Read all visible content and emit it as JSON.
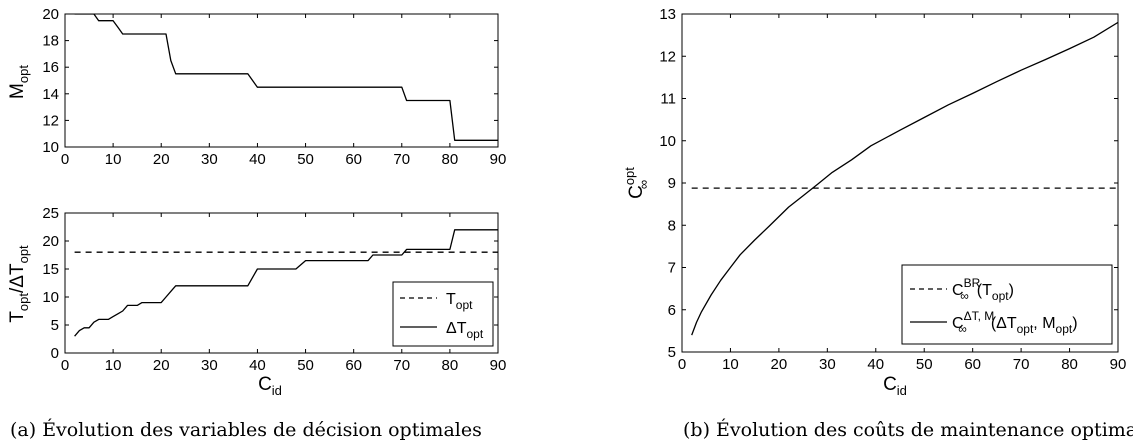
{
  "chart_data": [
    {
      "type": "line",
      "panel": "a-top",
      "xlabel": "",
      "ylabel": "M",
      "ylabel_sub": "opt",
      "xlim": [
        0,
        90
      ],
      "ylim": [
        10,
        20
      ],
      "x_ticks": [
        0,
        10,
        20,
        30,
        40,
        50,
        60,
        70,
        80,
        90
      ],
      "y_ticks": [
        10,
        12,
        14,
        16,
        18,
        20
      ],
      "grid": false,
      "series": [
        {
          "style": "solid",
          "x": [
            2,
            6,
            7,
            10,
            11,
            12,
            21,
            21.5,
            22,
            23,
            38,
            40,
            70,
            71,
            80,
            81,
            90
          ],
          "y": [
            20,
            20,
            19.5,
            19.5,
            19,
            18.5,
            18.5,
            17.5,
            16.5,
            15.5,
            15.5,
            14.5,
            14.5,
            13.5,
            13.5,
            10.5,
            10.5
          ]
        }
      ]
    },
    {
      "type": "line",
      "panel": "a-bottom",
      "xlabel": "C",
      "xlabel_sub": "id",
      "ylabel": "T",
      "ylabel_sub": "opt",
      "ylabel_mid": "/ΔT",
      "ylabel_sub2": "opt",
      "xlim": [
        0,
        90
      ],
      "ylim": [
        0,
        25
      ],
      "x_ticks": [
        0,
        10,
        20,
        30,
        40,
        50,
        60,
        70,
        80,
        90
      ],
      "y_ticks": [
        0,
        5,
        10,
        15,
        20,
        25
      ],
      "grid": false,
      "legend_position": "bottom-right",
      "series": [
        {
          "name": "T",
          "name_sub": "opt",
          "style": "dashed",
          "x": [
            2,
            90
          ],
          "y": [
            18,
            18
          ]
        },
        {
          "name": "ΔT",
          "name_sub": "opt",
          "style": "solid",
          "x": [
            2,
            3,
            4,
            5,
            6,
            7,
            9,
            10,
            11,
            12,
            13,
            15,
            16,
            20,
            21,
            22,
            23,
            38,
            40,
            48,
            50,
            63,
            64,
            70,
            71,
            80,
            81,
            90
          ],
          "y": [
            3,
            4,
            4.5,
            4.5,
            5.5,
            6,
            6,
            6.5,
            7,
            7.5,
            8.5,
            8.5,
            9,
            9,
            10,
            11,
            12,
            12,
            15,
            15,
            16.5,
            16.5,
            17.5,
            17.5,
            18.5,
            18.5,
            22,
            22
          ]
        }
      ]
    },
    {
      "type": "line",
      "panel": "b",
      "xlabel": "C",
      "xlabel_sub": "id",
      "ylabel": "C",
      "ylabel_sup": "opt",
      "ylabel_sub": "∞",
      "xlim": [
        0,
        90
      ],
      "ylim": [
        5,
        13
      ],
      "x_ticks": [
        0,
        10,
        20,
        30,
        40,
        50,
        60,
        70,
        80,
        90
      ],
      "y_ticks": [
        5,
        6,
        7,
        8,
        9,
        10,
        11,
        12,
        13
      ],
      "grid": false,
      "legend_position": "bottom-right",
      "series": [
        {
          "name": "C",
          "name_sub": "∞",
          "name_sup": "BR",
          "name_tail": "(T",
          "name_tail_sub": "opt",
          "name_end": ")",
          "style": "dashed",
          "x": [
            2,
            90
          ],
          "y": [
            8.88,
            8.88
          ]
        },
        {
          "name": "C",
          "name_sub": "∞",
          "name_sup": "ΔT, M",
          "name_tail": "(ΔT",
          "name_tail_sub": "opt",
          "name_mid": ", M",
          "name_mid_sub": "opt",
          "name_end": ")",
          "style": "solid",
          "x": [
            2,
            3,
            4,
            6,
            8,
            10,
            12,
            15,
            18,
            22,
            25,
            28,
            31,
            35,
            39,
            45,
            50,
            55,
            60,
            65,
            70,
            75,
            80,
            85,
            90
          ],
          "y": [
            5.4,
            5.7,
            5.95,
            6.35,
            6.7,
            7.0,
            7.3,
            7.65,
            7.98,
            8.43,
            8.7,
            8.97,
            9.25,
            9.55,
            9.88,
            10.25,
            10.55,
            10.85,
            11.12,
            11.4,
            11.67,
            11.92,
            12.18,
            12.45,
            12.8
          ]
        }
      ]
    }
  ],
  "captions": {
    "a": "(a) Évolution des variables de décision optimales",
    "b": "(b) Évolution des coûts de maintenance optima"
  }
}
